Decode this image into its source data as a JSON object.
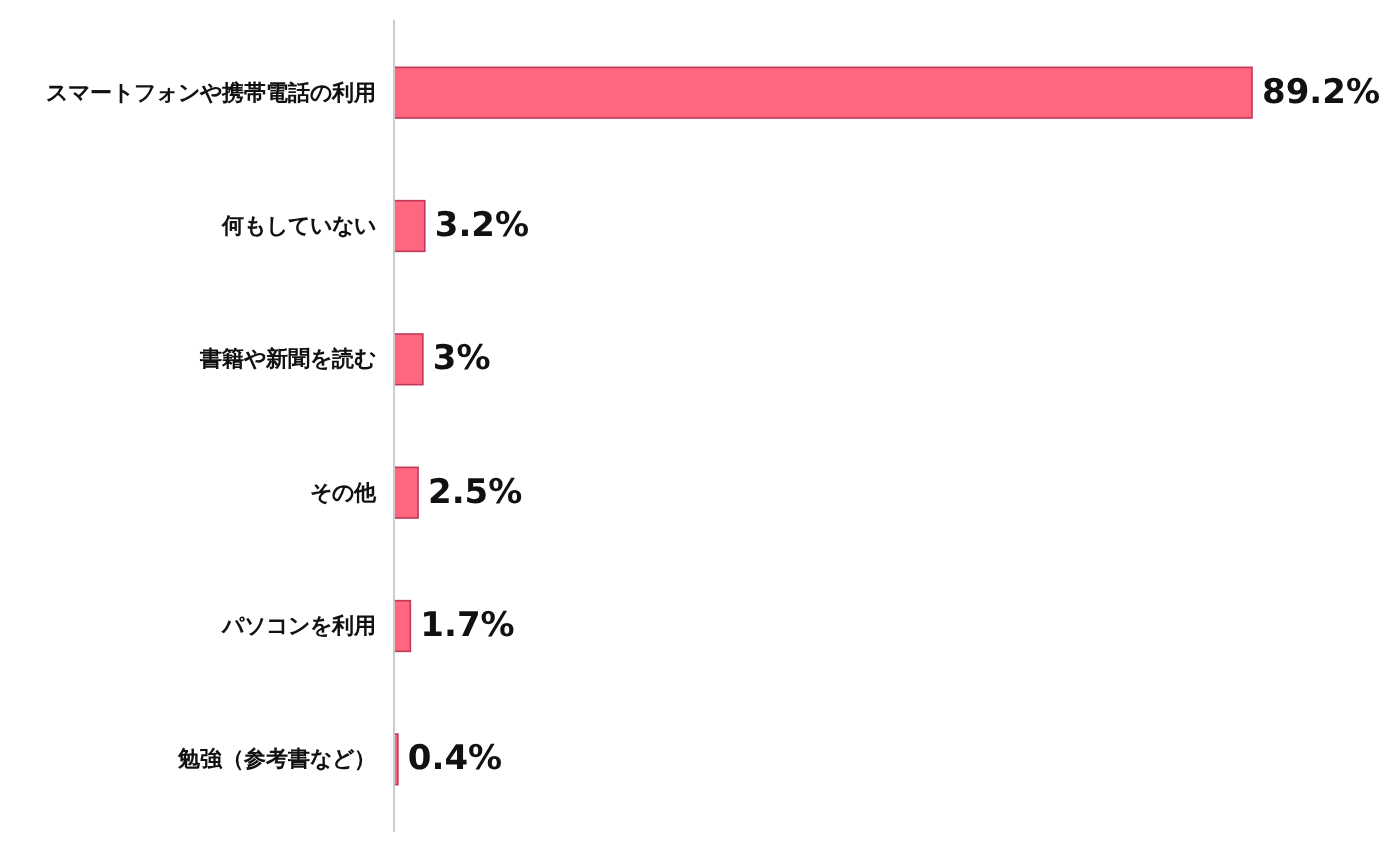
{
  "chart_data": {
    "type": "bar",
    "orientation": "horizontal",
    "categories": [
      "スマートフォンや携帯電話の利用",
      "何もしていない",
      "書籍や新聞を読む",
      "その他",
      "パソコンを利用",
      "勉強（参考書など）"
    ],
    "values": [
      89.2,
      3.2,
      3,
      2.5,
      1.7,
      0.4
    ],
    "color": "#ff6680",
    "value_labels": [
      "89.2%",
      "3.2%",
      "3%",
      "2.5%",
      "1.7%",
      "0.4%"
    ]
  }
}
